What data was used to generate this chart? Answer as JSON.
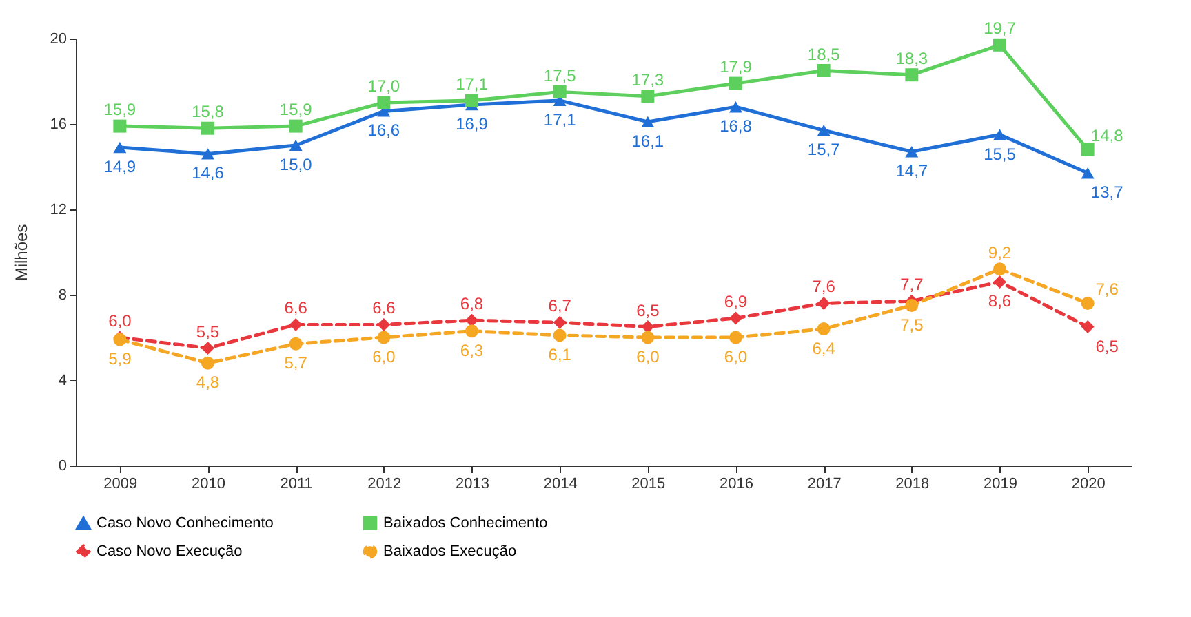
{
  "chart_data": {
    "type": "line",
    "ylabel": "Milhões",
    "categories": [
      "2009",
      "2010",
      "2011",
      "2012",
      "2013",
      "2014",
      "2015",
      "2016",
      "2017",
      "2018",
      "2019",
      "2020"
    ],
    "series": [
      {
        "name": "Caso Novo Conhecimento",
        "color": "#1f6fd6",
        "marker": "triangle",
        "line_style": "solid",
        "values": [
          14.9,
          14.6,
          15.0,
          16.6,
          16.9,
          17.1,
          16.1,
          16.8,
          15.7,
          14.7,
          15.5,
          13.7
        ],
        "value_labels": [
          "14,9",
          "14,6",
          "15,0",
          "16,6",
          "16,9",
          "17,1",
          "16,1",
          "16,8",
          "15,7",
          "14,7",
          "15,5",
          "13,7"
        ]
      },
      {
        "name": "Baixados Conhecimento",
        "color": "#5ccf5c",
        "marker": "square",
        "line_style": "solid",
        "values": [
          15.9,
          15.8,
          15.9,
          17.0,
          17.1,
          17.5,
          17.3,
          17.9,
          18.5,
          18.3,
          19.7,
          14.8
        ],
        "value_labels": [
          "15,9",
          "15,8",
          "15,9",
          "17,0",
          "17,1",
          "17,5",
          "17,3",
          "17,9",
          "18,5",
          "18,3",
          "19,7",
          "14,8"
        ]
      },
      {
        "name": "Caso Novo Execução",
        "color": "#e8383d",
        "marker": "diamond",
        "line_style": "dashed",
        "values": [
          6.0,
          5.5,
          6.6,
          6.6,
          6.8,
          6.7,
          6.5,
          6.9,
          7.6,
          7.7,
          8.6,
          6.5
        ],
        "value_labels": [
          "6,0",
          "5,5",
          "6,6",
          "6,6",
          "6,8",
          "6,7",
          "6,5",
          "6,9",
          "7,6",
          "7,7",
          "8,6",
          "6,5"
        ]
      },
      {
        "name": "Baixados Execução",
        "color": "#f5a623",
        "marker": "circle",
        "line_style": "dashed",
        "values": [
          5.9,
          4.8,
          5.7,
          6.0,
          6.3,
          6.1,
          6.0,
          6.0,
          6.4,
          7.5,
          9.2,
          7.6
        ],
        "value_labels": [
          "5,9",
          "4,8",
          "5,7",
          "6,0",
          "6,3",
          "6,1",
          "6,0",
          "6,0",
          "6,4",
          "7,5",
          "9,2",
          "7,6"
        ]
      }
    ],
    "ylim": [
      0,
      20
    ],
    "yticks": [
      0,
      4,
      8,
      12,
      16,
      20
    ],
    "grid": false,
    "legend": "bottom"
  }
}
